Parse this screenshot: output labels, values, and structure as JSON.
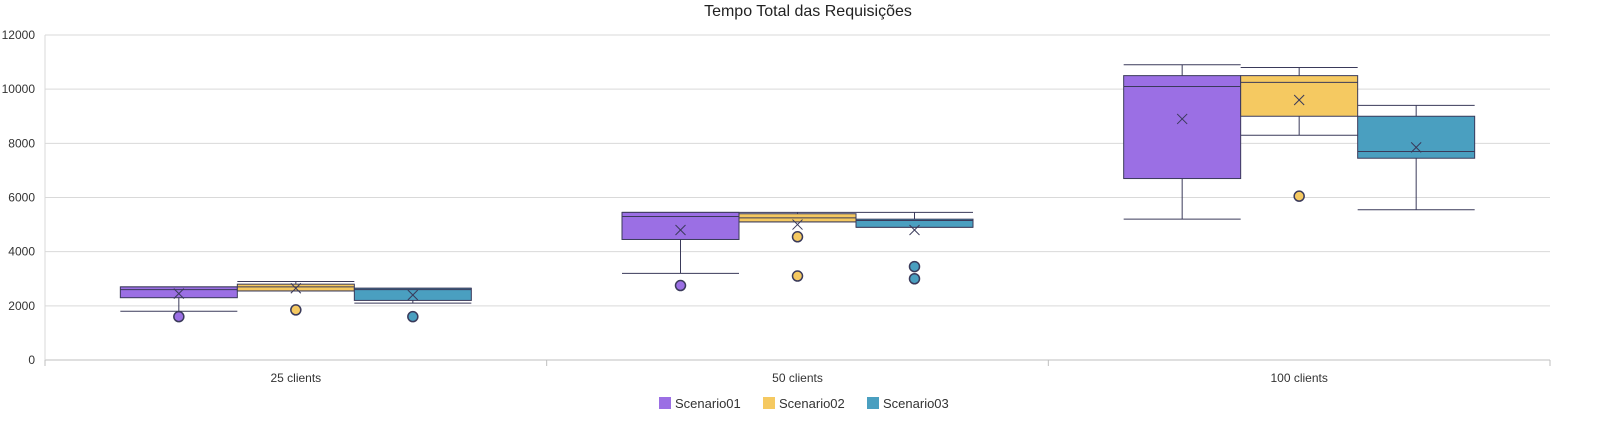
{
  "chart_data": {
    "type": "box",
    "title": "Tempo Total das Requisições",
    "xlabel": "",
    "ylabel": "",
    "ylim": [
      0,
      12000
    ],
    "yticks": [
      0,
      2000,
      4000,
      6000,
      8000,
      10000,
      12000
    ],
    "ytick_labels": [
      "0",
      "2000",
      "4000",
      "6000",
      "8000",
      "10000",
      "12000"
    ],
    "categories": [
      "25 clients",
      "50 clients",
      "100 clients"
    ],
    "grid": true,
    "legend_position": "bottom",
    "series": [
      {
        "name": "Scenario01",
        "color": "#9b6fe4",
        "boxes": [
          {
            "min": 1800,
            "q1": 2300,
            "median": 2600,
            "q3": 2700,
            "max": 2700,
            "mean": 2450,
            "outliers": [
              1600
            ]
          },
          {
            "min": 3200,
            "q1": 4450,
            "median": 5300,
            "q3": 5450,
            "max": 5450,
            "mean": 4800,
            "outliers": [
              2750
            ]
          },
          {
            "min": 5200,
            "q1": 6700,
            "median": 10100,
            "q3": 10500,
            "max": 10900,
            "mean": 8900,
            "outliers": []
          }
        ]
      },
      {
        "name": "Scenario02",
        "color": "#f5c961",
        "boxes": [
          {
            "min": 2550,
            "q1": 2550,
            "median": 2700,
            "q3": 2800,
            "max": 2900,
            "mean": 2650,
            "outliers": [
              1850
            ]
          },
          {
            "min": 5100,
            "q1": 5100,
            "median": 5250,
            "q3": 5400,
            "max": 5450,
            "mean": 5000,
            "outliers": [
              4550,
              3100
            ]
          },
          {
            "min": 8300,
            "q1": 9000,
            "median": 10250,
            "q3": 10500,
            "max": 10800,
            "mean": 9600,
            "outliers": [
              6050
            ]
          }
        ]
      },
      {
        "name": "Scenario03",
        "color": "#4a9fc0",
        "boxes": [
          {
            "min": 2100,
            "q1": 2200,
            "median": 2600,
            "q3": 2650,
            "max": 2650,
            "mean": 2400,
            "outliers": [
              1600
            ]
          },
          {
            "min": 4900,
            "q1": 4900,
            "median": 5150,
            "q3": 5200,
            "max": 5450,
            "mean": 4800,
            "outliers": [
              3450,
              3000
            ]
          },
          {
            "min": 5550,
            "q1": 7450,
            "median": 7700,
            "q3": 9000,
            "max": 9400,
            "mean": 7850,
            "outliers": []
          }
        ]
      }
    ]
  }
}
